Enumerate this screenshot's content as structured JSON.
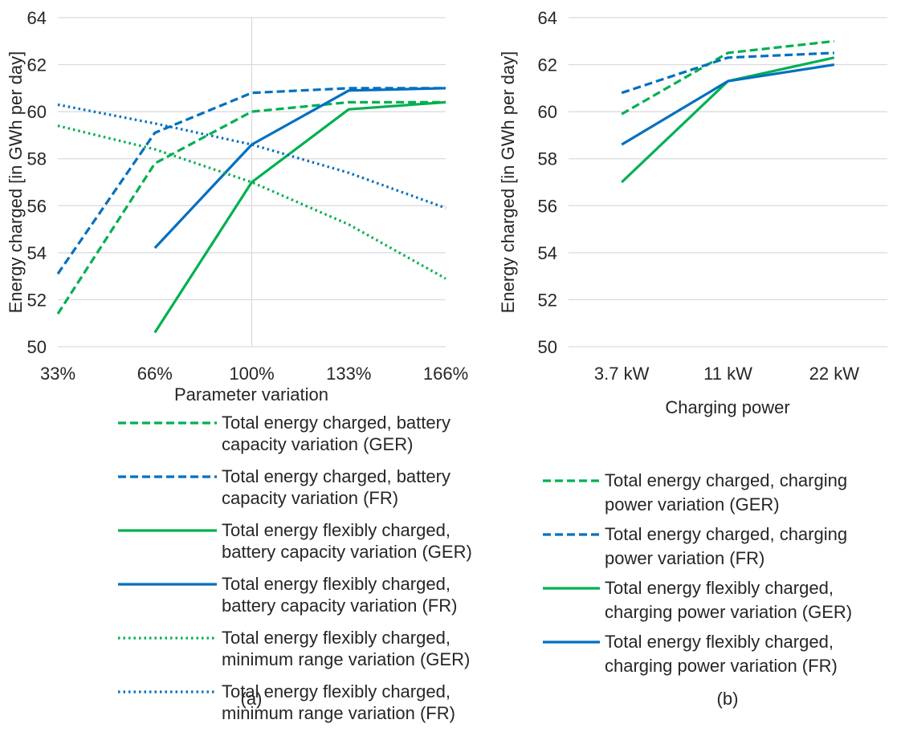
{
  "chart_data": [
    {
      "panel_label": "(a)",
      "type": "line",
      "categories": [
        "33%",
        "66%",
        "100%",
        "133%",
        "166%"
      ],
      "xlabel": "Parameter variation",
      "ylabel": "Energy charged [in GWh per day]",
      "ylim": [
        50,
        64
      ],
      "yticks": [
        "50",
        "52",
        "54",
        "56",
        "58",
        "60",
        "62",
        "64"
      ],
      "grid": "horizontal",
      "legend_position": "bottom",
      "series": [
        {
          "name": "Total energy charged, battery capacity variation (GER)",
          "color": "#00B050",
          "style": "dashed",
          "values": [
            51.4,
            57.8,
            60.0,
            60.4,
            60.4
          ]
        },
        {
          "name": "Total energy charged, battery capacity variation (FR)",
          "color": "#0070C0",
          "style": "dashed",
          "values": [
            53.1,
            59.1,
            60.8,
            61.0,
            61.0
          ]
        },
        {
          "name": "Total energy flexibly charged, battery capacity variation (GER)",
          "color": "#00B050",
          "style": "solid",
          "values": [
            null,
            50.6,
            57.0,
            60.1,
            60.4
          ]
        },
        {
          "name": "Total energy flexibly charged, battery capacity variation (FR)",
          "color": "#0070C0",
          "style": "solid",
          "values": [
            null,
            54.2,
            58.6,
            60.9,
            61.0
          ]
        },
        {
          "name": "Total energy flexibly charged, minimum range variation (GER)",
          "color": "#00B050",
          "style": "dotted",
          "values": [
            59.4,
            58.4,
            57.0,
            55.2,
            52.9
          ]
        },
        {
          "name": "Total energy flexibly charged, minimum range variation (FR)",
          "color": "#0070C0",
          "style": "dotted",
          "values": [
            60.3,
            59.5,
            58.6,
            57.4,
            55.9
          ]
        }
      ],
      "legend_lines": [
        [
          "Total energy charged, battery",
          "capacity variation (GER)"
        ],
        [
          "Total energy charged, battery",
          "capacity variation (FR)"
        ],
        [
          "Total energy flexibly charged,",
          "battery capacity variation (GER)"
        ],
        [
          "Total energy flexibly charged,",
          "battery capacity variation (FR)"
        ],
        [
          "Total energy flexibly charged,",
          "minimum range variation (GER)"
        ],
        [
          "Total energy flexibly charged,",
          "minimum range variation (FR)"
        ]
      ]
    },
    {
      "panel_label": "(b)",
      "type": "line",
      "categories": [
        "3.7 kW",
        "11 kW",
        "22 kW"
      ],
      "xlabel": "Charging power",
      "ylabel": "Energy charged [in GWh per day]",
      "ylim": [
        50,
        64
      ],
      "yticks": [
        "50",
        "52",
        "54",
        "56",
        "58",
        "60",
        "62",
        "64"
      ],
      "grid": "horizontal",
      "legend_position": "bottom",
      "series": [
        {
          "name": "Total energy charged, charging power variation (GER)",
          "color": "#00B050",
          "style": "dashed",
          "values": [
            59.9,
            62.5,
            63.0
          ]
        },
        {
          "name": "Total energy charged, charging power variation (FR)",
          "color": "#0070C0",
          "style": "dashed",
          "values": [
            60.8,
            62.3,
            62.5
          ]
        },
        {
          "name": "Total energy flexibly charged, charging power variation (GER)",
          "color": "#00B050",
          "style": "solid",
          "values": [
            57.0,
            61.3,
            62.3
          ]
        },
        {
          "name": "Total energy flexibly charged, charging power variation (FR)",
          "color": "#0070C0",
          "style": "solid",
          "values": [
            58.6,
            61.3,
            62.0
          ]
        }
      ],
      "legend_lines": [
        [
          "Total energy charged, charging",
          "power variation (GER)"
        ],
        [
          "Total energy charged, charging",
          "power variation (FR)"
        ],
        [
          "Total energy flexibly charged,",
          "charging power variation (GER)"
        ],
        [
          "Total energy flexibly charged,",
          "charging power variation (FR)"
        ]
      ]
    }
  ]
}
